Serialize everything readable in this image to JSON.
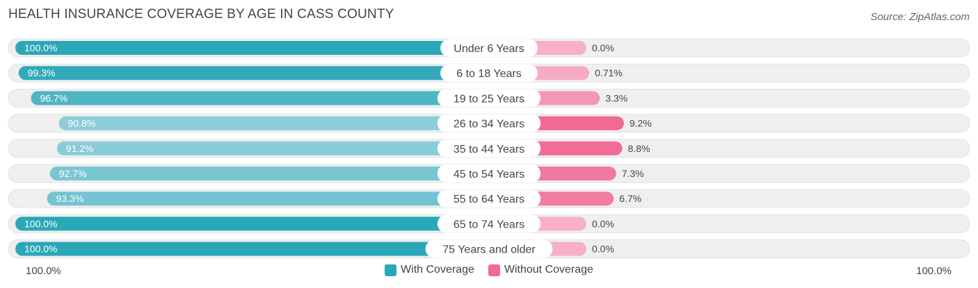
{
  "title": "HEALTH INSURANCE COVERAGE BY AGE IN CASS COUNTY",
  "source": "Source: ZipAtlas.com",
  "colors": {
    "with_dark": "#2aa7b8",
    "with_light": "#8ccdd8",
    "without_dark": "#f06a93",
    "without_light": "#f7b0c6",
    "track": "#efefef"
  },
  "axis": {
    "left_label": "100.0%",
    "right_label": "100.0%"
  },
  "chart_data": {
    "type": "bar",
    "orientation": "horizontal-diverging",
    "title": "HEALTH INSURANCE COVERAGE BY AGE IN CASS COUNTY",
    "categories": [
      "Under 6 Years",
      "6 to 18 Years",
      "19 to 25 Years",
      "26 to 34 Years",
      "35 to 44 Years",
      "45 to 54 Years",
      "55 to 64 Years",
      "65 to 74 Years",
      "75 Years and older"
    ],
    "series": [
      {
        "name": "With Coverage",
        "values": [
          100.0,
          99.3,
          96.7,
          90.8,
          91.2,
          92.7,
          93.3,
          100.0,
          100.0
        ],
        "labels": [
          "100.0%",
          "99.3%",
          "96.7%",
          "90.8%",
          "91.2%",
          "92.7%",
          "93.3%",
          "100.0%",
          "100.0%"
        ]
      },
      {
        "name": "Without Coverage",
        "values": [
          0.0,
          0.71,
          3.3,
          9.2,
          8.8,
          7.3,
          6.7,
          0.0,
          0.0
        ],
        "labels": [
          "0.0%",
          "0.71%",
          "3.3%",
          "9.2%",
          "8.8%",
          "7.3%",
          "6.7%",
          "0.0%",
          "0.0%"
        ]
      }
    ],
    "xlim": [
      0,
      100
    ],
    "legend": [
      "With Coverage",
      "Without Coverage"
    ],
    "legend_position": "bottom-center"
  }
}
